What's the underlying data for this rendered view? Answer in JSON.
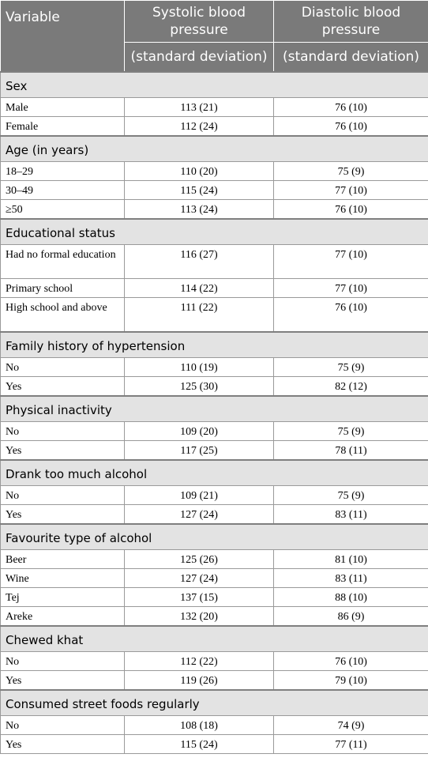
{
  "header": {
    "variable": "Variable",
    "systolic": "Systolic blood pressure",
    "diastolic": "Diastolic blood pressure",
    "systolic_sub": "(standard deviation)",
    "diastolic_sub": "(standard deviation)"
  },
  "sections": [
    {
      "title": "Sex",
      "rows": [
        {
          "label": "Male",
          "systolic": "113 (21)",
          "diastolic": "76 (10)"
        },
        {
          "label": "Female",
          "systolic": "112 (24)",
          "diastolic": "76 (10)"
        }
      ]
    },
    {
      "title": "Age (in years)",
      "rows": [
        {
          "label": "18–29",
          "systolic": "110 (20)",
          "diastolic": "75 (9)"
        },
        {
          "label": "30–49",
          "systolic": "115 (24)",
          "diastolic": "77 (10)"
        },
        {
          "label": "≥50",
          "systolic": "113 (24)",
          "diastolic": "76 (10)"
        }
      ]
    },
    {
      "title": "Educational status",
      "rows": [
        {
          "label": "Had no formal education",
          "systolic": "116 (27)",
          "diastolic": "77 (10)",
          "tall": true
        },
        {
          "label": "Primary school",
          "systolic": "114 (22)",
          "diastolic": "77 (10)"
        },
        {
          "label": "High school and above",
          "systolic": "111 (22)",
          "diastolic": "76 (10)",
          "tall": true
        }
      ]
    },
    {
      "title": "Family history of hypertension",
      "rows": [
        {
          "label": "No",
          "systolic": "110 (19)",
          "diastolic": "75 (9)"
        },
        {
          "label": "Yes",
          "systolic": "125 (30)",
          "diastolic": "82 (12)"
        }
      ]
    },
    {
      "title": "Physical inactivity",
      "rows": [
        {
          "label": "No",
          "systolic": "109 (20)",
          "diastolic": "75 (9)"
        },
        {
          "label": "Yes",
          "systolic": "117 (25)",
          "diastolic": "78 (11)"
        }
      ]
    },
    {
      "title": "Drank too much alcohol",
      "rows": [
        {
          "label": "No",
          "systolic": "109 (21)",
          "diastolic": "75 (9)"
        },
        {
          "label": "Yes",
          "systolic": "127 (24)",
          "diastolic": "83 (11)"
        }
      ]
    },
    {
      "title": "Favourite type of alcohol",
      "rows": [
        {
          "label": "Beer",
          "systolic": "125 (26)",
          "diastolic": "81 (10)"
        },
        {
          "label": "Wine",
          "systolic": "127 (24)",
          "diastolic": "83 (11)"
        },
        {
          "label": "Tej",
          "systolic": "137 (15)",
          "diastolic": "88 (10)"
        },
        {
          "label": "Areke",
          "systolic": "132 (20)",
          "diastolic": "86 (9)"
        }
      ]
    },
    {
      "title": "Chewed khat",
      "rows": [
        {
          "label": "No",
          "systolic": "112 (22)",
          "diastolic": "76 (10)"
        },
        {
          "label": "Yes",
          "systolic": "119 (26)",
          "diastolic": "79 (10)"
        }
      ]
    },
    {
      "title": "Consumed street foods regularly",
      "rows": [
        {
          "label": "No",
          "systolic": "108 (18)",
          "diastolic": "74 (9)"
        },
        {
          "label": "Yes",
          "systolic": "115 (24)",
          "diastolic": "77 (11)"
        }
      ]
    }
  ]
}
